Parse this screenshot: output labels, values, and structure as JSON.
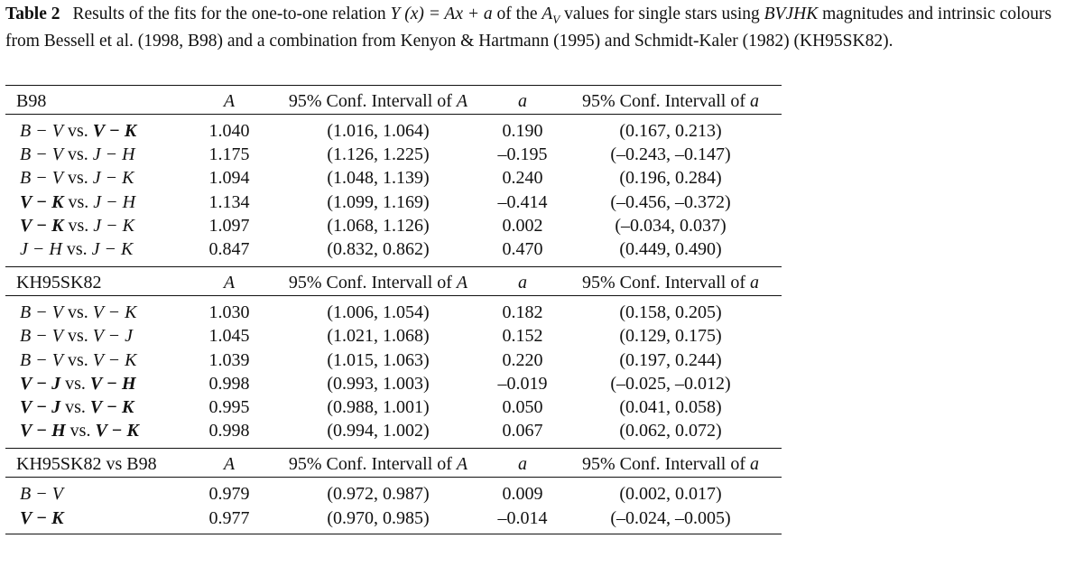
{
  "caption": {
    "label": "Table 2",
    "text_1": "Results of the fits for the one-to-one relation ",
    "math_1": "Y (x) = Ax + a",
    "text_2": " of the ",
    "math_2": "A",
    "sub_2": "V",
    "text_3": " values for single stars using ",
    "math_3": "BVJHK",
    "text_4": " magnitudes and intrinsic colours from Bessell et al. (1998, B98) and a combination from Kenyon & Hartmann (1995) and Schmidt-Kaler (1982) (KH95SK82)."
  },
  "columns": {
    "A": "A",
    "ci_A_text": "95% Conf. Intervall of ",
    "ci_A_var": "A",
    "a": "a",
    "ci_a_text": "95% Conf. Intervall of ",
    "ci_a_var": "a"
  },
  "sections": [
    {
      "title": "B98",
      "rows": [
        {
          "x": "B − V",
          "y": "V − K",
          "bold_x": false,
          "bold_y": true,
          "A": "1.040",
          "A_ci": "(1.016, 1.064)",
          "a": "0.190",
          "a_ci": "(0.167, 0.213)"
        },
        {
          "x": "B − V",
          "y": "J − H",
          "bold_x": false,
          "bold_y": false,
          "A": "1.175",
          "A_ci": "(1.126, 1.225)",
          "a": "–0.195",
          "a_ci": "(–0.243, –0.147)"
        },
        {
          "x": "B − V",
          "y": "J − K",
          "bold_x": false,
          "bold_y": false,
          "A": "1.094",
          "A_ci": "(1.048, 1.139)",
          "a": "0.240",
          "a_ci": "(0.196, 0.284)"
        },
        {
          "x": "V − K",
          "y": "J − H",
          "bold_x": true,
          "bold_y": false,
          "A": "1.134",
          "A_ci": "(1.099, 1.169)",
          "a": "–0.414",
          "a_ci": "(–0.456, –0.372)"
        },
        {
          "x": "V − K",
          "y": "J − K",
          "bold_x": true,
          "bold_y": false,
          "A": "1.097",
          "A_ci": "(1.068, 1.126)",
          "a": "0.002",
          "a_ci": "(–0.034, 0.037)"
        },
        {
          "x": "J − H",
          "y": "J − K",
          "bold_x": false,
          "bold_y": false,
          "A": "0.847",
          "A_ci": "(0.832, 0.862)",
          "a": "0.470",
          "a_ci": "(0.449, 0.490)"
        }
      ]
    },
    {
      "title": "KH95SK82",
      "rows": [
        {
          "x": "B − V",
          "y": "V − K",
          "bold_x": false,
          "bold_y": false,
          "A": "1.030",
          "A_ci": "(1.006, 1.054)",
          "a": "0.182",
          "a_ci": "(0.158, 0.205)"
        },
        {
          "x": "B − V",
          "y": "V − J",
          "bold_x": false,
          "bold_y": false,
          "A": "1.045",
          "A_ci": "(1.021, 1.068)",
          "a": "0.152",
          "a_ci": "(0.129, 0.175)"
        },
        {
          "x": "B − V",
          "y": "V − K",
          "bold_x": false,
          "bold_y": false,
          "A": "1.039",
          "A_ci": "(1.015, 1.063)",
          "a": "0.220",
          "a_ci": "(0.197, 0.244)"
        },
        {
          "x": "V − J",
          "y": "V − H",
          "bold_x": true,
          "bold_y": true,
          "A": "0.998",
          "A_ci": "(0.993, 1.003)",
          "a": "–0.019",
          "a_ci": "(–0.025, –0.012)"
        },
        {
          "x": "V − J",
          "y": "V − K",
          "bold_x": true,
          "bold_y": true,
          "A": "0.995",
          "A_ci": "(0.988, 1.001)",
          "a": "0.050",
          "a_ci": "(0.041, 0.058)"
        },
        {
          "x": "V − H",
          "y": "V − K",
          "bold_x": true,
          "bold_y": true,
          "A": "0.998",
          "A_ci": "(0.994, 1.002)",
          "a": "0.067",
          "a_ci": "(0.062, 0.072)"
        }
      ]
    },
    {
      "title": "KH95SK82 vs B98",
      "rows": [
        {
          "x": "B − V",
          "y": "",
          "bold_x": false,
          "bold_y": false,
          "A": "0.979",
          "A_ci": "(0.972, 0.987)",
          "a": "0.009",
          "a_ci": "(0.002, 0.017)"
        },
        {
          "x": "V − K",
          "y": "",
          "bold_x": true,
          "bold_y": false,
          "A": "0.977",
          "A_ci": "(0.970, 0.985)",
          "a": "–0.014",
          "a_ci": "(–0.024, –0.005)"
        }
      ]
    }
  ]
}
